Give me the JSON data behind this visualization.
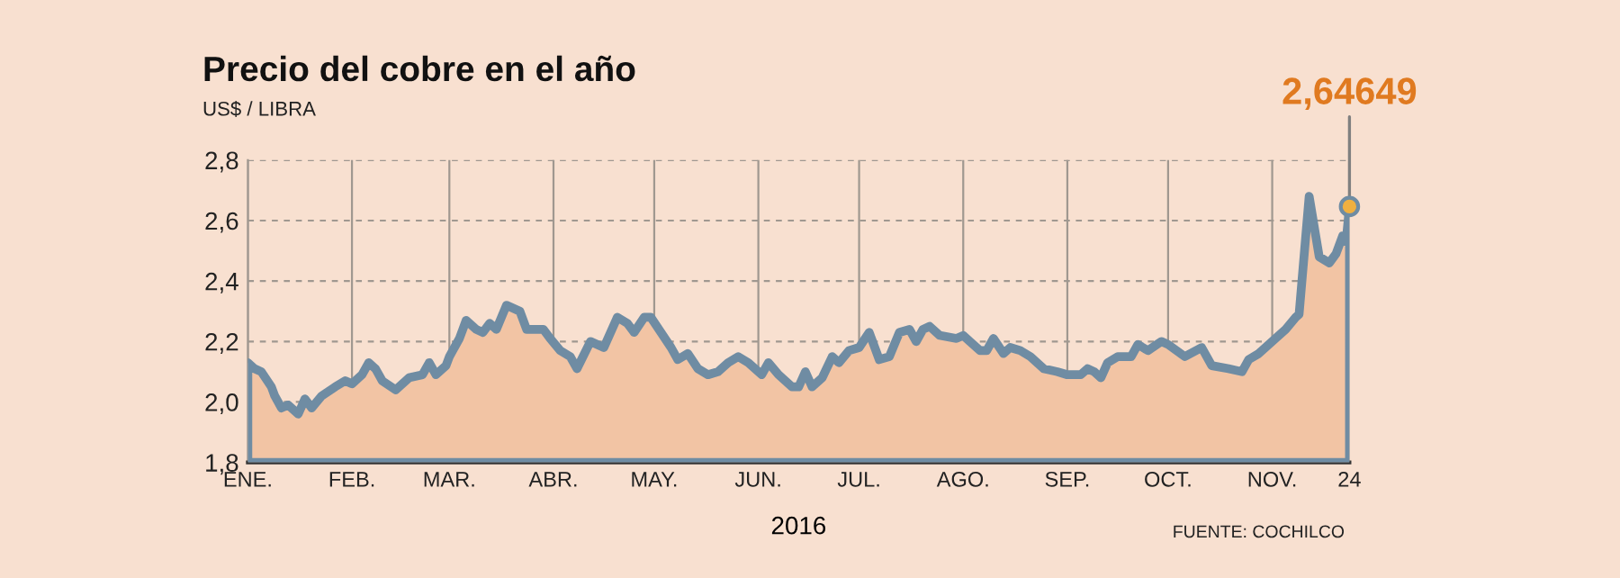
{
  "chart_data": {
    "type": "area",
    "title": "Precio del cobre en el año",
    "subtitle": "US$ / LIBRA",
    "xlabel": "2016",
    "annotations": [
      {
        "text": "2,64649",
        "x": "2016-11-24",
        "y": 2.64649
      },
      "FUENTE: COCHILCO"
    ],
    "x": [
      "2016-01-01",
      "2016-01-03",
      "2016-01-05",
      "2016-01-08",
      "2016-01-09",
      "2016-01-11",
      "2016-01-13",
      "2016-01-16",
      "2016-01-18",
      "2016-01-20",
      "2016-01-23",
      "2016-01-27",
      "2016-01-30",
      "2016-02-01",
      "2016-02-04",
      "2016-02-06",
      "2016-02-08",
      "2016-02-10",
      "2016-02-14",
      "2016-02-18",
      "2016-02-22",
      "2016-02-24",
      "2016-02-26",
      "2016-02-29",
      "2016-03-01",
      "2016-03-04",
      "2016-03-06",
      "2016-03-09",
      "2016-03-11",
      "2016-03-13",
      "2016-03-15",
      "2016-03-18",
      "2016-03-22",
      "2016-03-24",
      "2016-03-29",
      "2016-03-31",
      "2016-04-03",
      "2016-04-06",
      "2016-04-08",
      "2016-04-12",
      "2016-04-16",
      "2016-04-20",
      "2016-04-23",
      "2016-04-25",
      "2016-04-28",
      "2016-04-30",
      "2016-05-03",
      "2016-05-06",
      "2016-05-08",
      "2016-05-11",
      "2016-05-14",
      "2016-05-17",
      "2016-05-20",
      "2016-05-23",
      "2016-05-26",
      "2016-05-29",
      "2016-06-02",
      "2016-06-04",
      "2016-06-07",
      "2016-06-11",
      "2016-06-13",
      "2016-06-15",
      "2016-06-17",
      "2016-06-20",
      "2016-06-23",
      "2016-06-25",
      "2016-06-28",
      "2016-07-01",
      "2016-07-04",
      "2016-07-05",
      "2016-07-07",
      "2016-07-10",
      "2016-07-13",
      "2016-07-16",
      "2016-07-18",
      "2016-07-20",
      "2016-07-22",
      "2016-07-25",
      "2016-07-30",
      "2016-08-01",
      "2016-08-03",
      "2016-08-06",
      "2016-08-08",
      "2016-08-10",
      "2016-08-13",
      "2016-08-15",
      "2016-08-18",
      "2016-08-21",
      "2016-08-25",
      "2016-08-29",
      "2016-09-01",
      "2016-09-05",
      "2016-09-07",
      "2016-09-09",
      "2016-09-11",
      "2016-09-13",
      "2016-09-16",
      "2016-09-20",
      "2016-09-22",
      "2016-09-25",
      "2016-09-29",
      "2016-10-01",
      "2016-10-06",
      "2016-10-11",
      "2016-10-14",
      "2016-10-19",
      "2016-10-23",
      "2016-10-25",
      "2016-10-28",
      "2016-11-02",
      "2016-11-05",
      "2016-11-08",
      "2016-11-09",
      "2016-11-12",
      "2016-11-15",
      "2016-11-18",
      "2016-11-20",
      "2016-11-22",
      "2016-11-23",
      "2016-11-24"
    ],
    "series": [
      {
        "color": "#6f8ca3",
        "values": [
          2.13,
          2.11,
          2.1,
          2.05,
          2.02,
          1.98,
          1.99,
          1.96,
          2.01,
          1.98,
          2.02,
          2.05,
          2.07,
          2.06,
          2.09,
          2.13,
          2.11,
          2.07,
          2.04,
          2.08,
          2.09,
          2.13,
          2.09,
          2.12,
          2.15,
          2.21,
          2.27,
          2.24,
          2.23,
          2.26,
          2.24,
          2.32,
          2.3,
          2.24,
          2.24,
          2.21,
          2.17,
          2.15,
          2.11,
          2.2,
          2.18,
          2.28,
          2.26,
          2.23,
          2.28,
          2.28,
          2.23,
          2.18,
          2.14,
          2.16,
          2.11,
          2.09,
          2.1,
          2.13,
          2.15,
          2.13,
          2.09,
          2.13,
          2.09,
          2.05,
          2.05,
          2.1,
          2.05,
          2.08,
          2.15,
          2.13,
          2.17,
          2.18,
          2.23,
          2.2,
          2.14,
          2.15,
          2.23,
          2.24,
          2.2,
          2.24,
          2.25,
          2.22,
          2.21,
          2.22,
          2.2,
          2.17,
          2.17,
          2.21,
          2.16,
          2.18,
          2.17,
          2.15,
          2.11,
          2.1,
          2.09,
          2.09,
          2.11,
          2.1,
          2.08,
          2.13,
          2.15,
          2.15,
          2.19,
          2.17,
          2.2,
          2.19,
          2.15,
          2.18,
          2.12,
          2.11,
          2.1,
          2.14,
          2.16,
          2.21,
          2.24,
          2.28,
          2.29,
          2.68,
          2.48,
          2.46,
          2.49,
          2.55,
          2.53,
          2.64649
        ]
      }
    ],
    "xlim": [
      "2016-01-01",
      "2016-11-24"
    ],
    "xticks": [
      {
        "value": "2016-01-01",
        "label": "ENE."
      },
      {
        "value": "2016-02-01",
        "label": "FEB."
      },
      {
        "value": "2016-03-01",
        "label": "MAR."
      },
      {
        "value": "2016-04-01",
        "label": "ABR."
      },
      {
        "value": "2016-05-01",
        "label": "MAY."
      },
      {
        "value": "2016-06-01",
        "label": "JUN."
      },
      {
        "value": "2016-07-01",
        "label": "JUL."
      },
      {
        "value": "2016-08-01",
        "label": "AGO."
      },
      {
        "value": "2016-09-01",
        "label": "SEP."
      },
      {
        "value": "2016-10-01",
        "label": "OCT."
      },
      {
        "value": "2016-11-01",
        "label": "NOV."
      },
      {
        "value": "2016-11-24",
        "label": "24"
      }
    ],
    "ylim": [
      1.8,
      2.8
    ],
    "yticks": [
      {
        "value": 1.8,
        "label": "1,8"
      },
      {
        "value": 2.0,
        "label": "2,0"
      },
      {
        "value": 2.2,
        "label": "2,2"
      },
      {
        "value": 2.4,
        "label": "2,4"
      },
      {
        "value": 2.6,
        "label": "2,6"
      },
      {
        "value": 2.8,
        "label": "2,8"
      }
    ],
    "grid": true,
    "legend": false
  }
}
